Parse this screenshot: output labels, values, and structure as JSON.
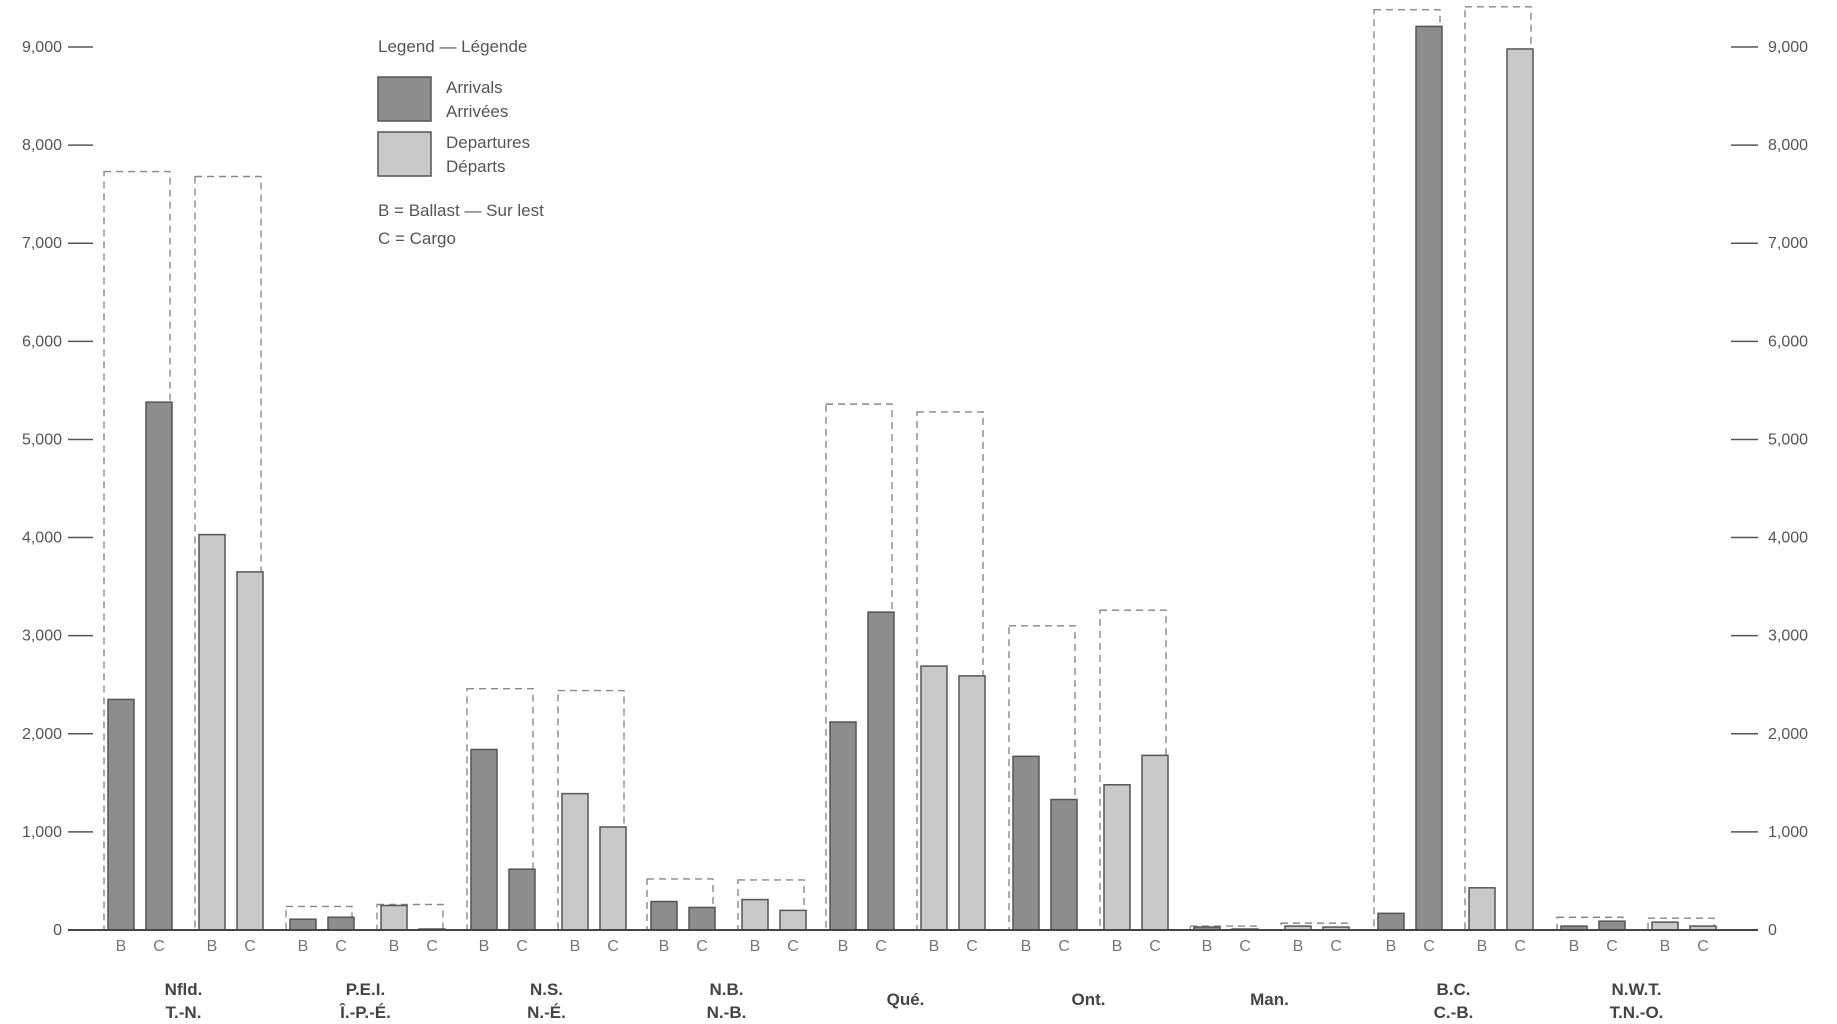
{
  "chart_data": {
    "type": "bar",
    "y_ticks": [
      0,
      1000,
      2000,
      3000,
      4000,
      5000,
      6000,
      7000,
      8000,
      9000
    ],
    "y_tick_labels": [
      "0",
      "1,000",
      "2,000",
      "3,000",
      "4,000",
      "5,000",
      "6,000",
      "7,000",
      "8,000",
      "9,000"
    ],
    "ylim": [
      0,
      9000
    ],
    "legend": {
      "title": "Legend — Légende",
      "arrivals_en": "Arrivals",
      "arrivals_fr": "Arrivées",
      "departures_en": "Departures",
      "departures_fr": "Départs",
      "ballast_note": "B = Ballast — Sur lest",
      "cargo_note": "C = Cargo"
    },
    "bar_letters": [
      "B",
      "C"
    ],
    "colors": {
      "arrivals": "#8d8d8d",
      "departures": "#c9c9c9",
      "outline": "#555555"
    },
    "provinces": [
      {
        "label1": "Nfld.",
        "label2": "T.-N.",
        "arrivals": {
          "ballast": 2350,
          "cargo": 5380
        },
        "departures": {
          "ballast": 4030,
          "cargo": 3650
        }
      },
      {
        "label1": "P.E.I.",
        "label2": "Î.-P.-É.",
        "arrivals": {
          "ballast": 110,
          "cargo": 130
        },
        "departures": {
          "ballast": 250,
          "cargo": 10
        }
      },
      {
        "label1": "N.S.",
        "label2": "N.-É.",
        "arrivals": {
          "ballast": 1840,
          "cargo": 620
        },
        "departures": {
          "ballast": 1390,
          "cargo": 1050
        }
      },
      {
        "label1": "N.B.",
        "label2": "N.-B.",
        "arrivals": {
          "ballast": 290,
          "cargo": 230
        },
        "departures": {
          "ballast": 310,
          "cargo": 200
        }
      },
      {
        "label1": "Qué.",
        "label2": "",
        "arrivals": {
          "ballast": 2120,
          "cargo": 3240
        },
        "departures": {
          "ballast": 2690,
          "cargo": 2590
        }
      },
      {
        "label1": "Ont.",
        "label2": "",
        "arrivals": {
          "ballast": 1770,
          "cargo": 1330
        },
        "departures": {
          "ballast": 1480,
          "cargo": 1780
        }
      },
      {
        "label1": "Man.",
        "label2": "",
        "arrivals": {
          "ballast": 30,
          "cargo": 10
        },
        "departures": {
          "ballast": 40,
          "cargo": 30
        }
      },
      {
        "label1": "B.C.",
        "label2": "C.-B.",
        "arrivals": {
          "ballast": 170,
          "cargo": 9210
        },
        "departures": {
          "ballast": 430,
          "cargo": 8980
        }
      },
      {
        "label1": "N.W.T.",
        "label2": "T.N.-O.",
        "arrivals": {
          "ballast": 40,
          "cargo": 90
        },
        "departures": {
          "ballast": 80,
          "cargo": 40
        }
      }
    ]
  }
}
